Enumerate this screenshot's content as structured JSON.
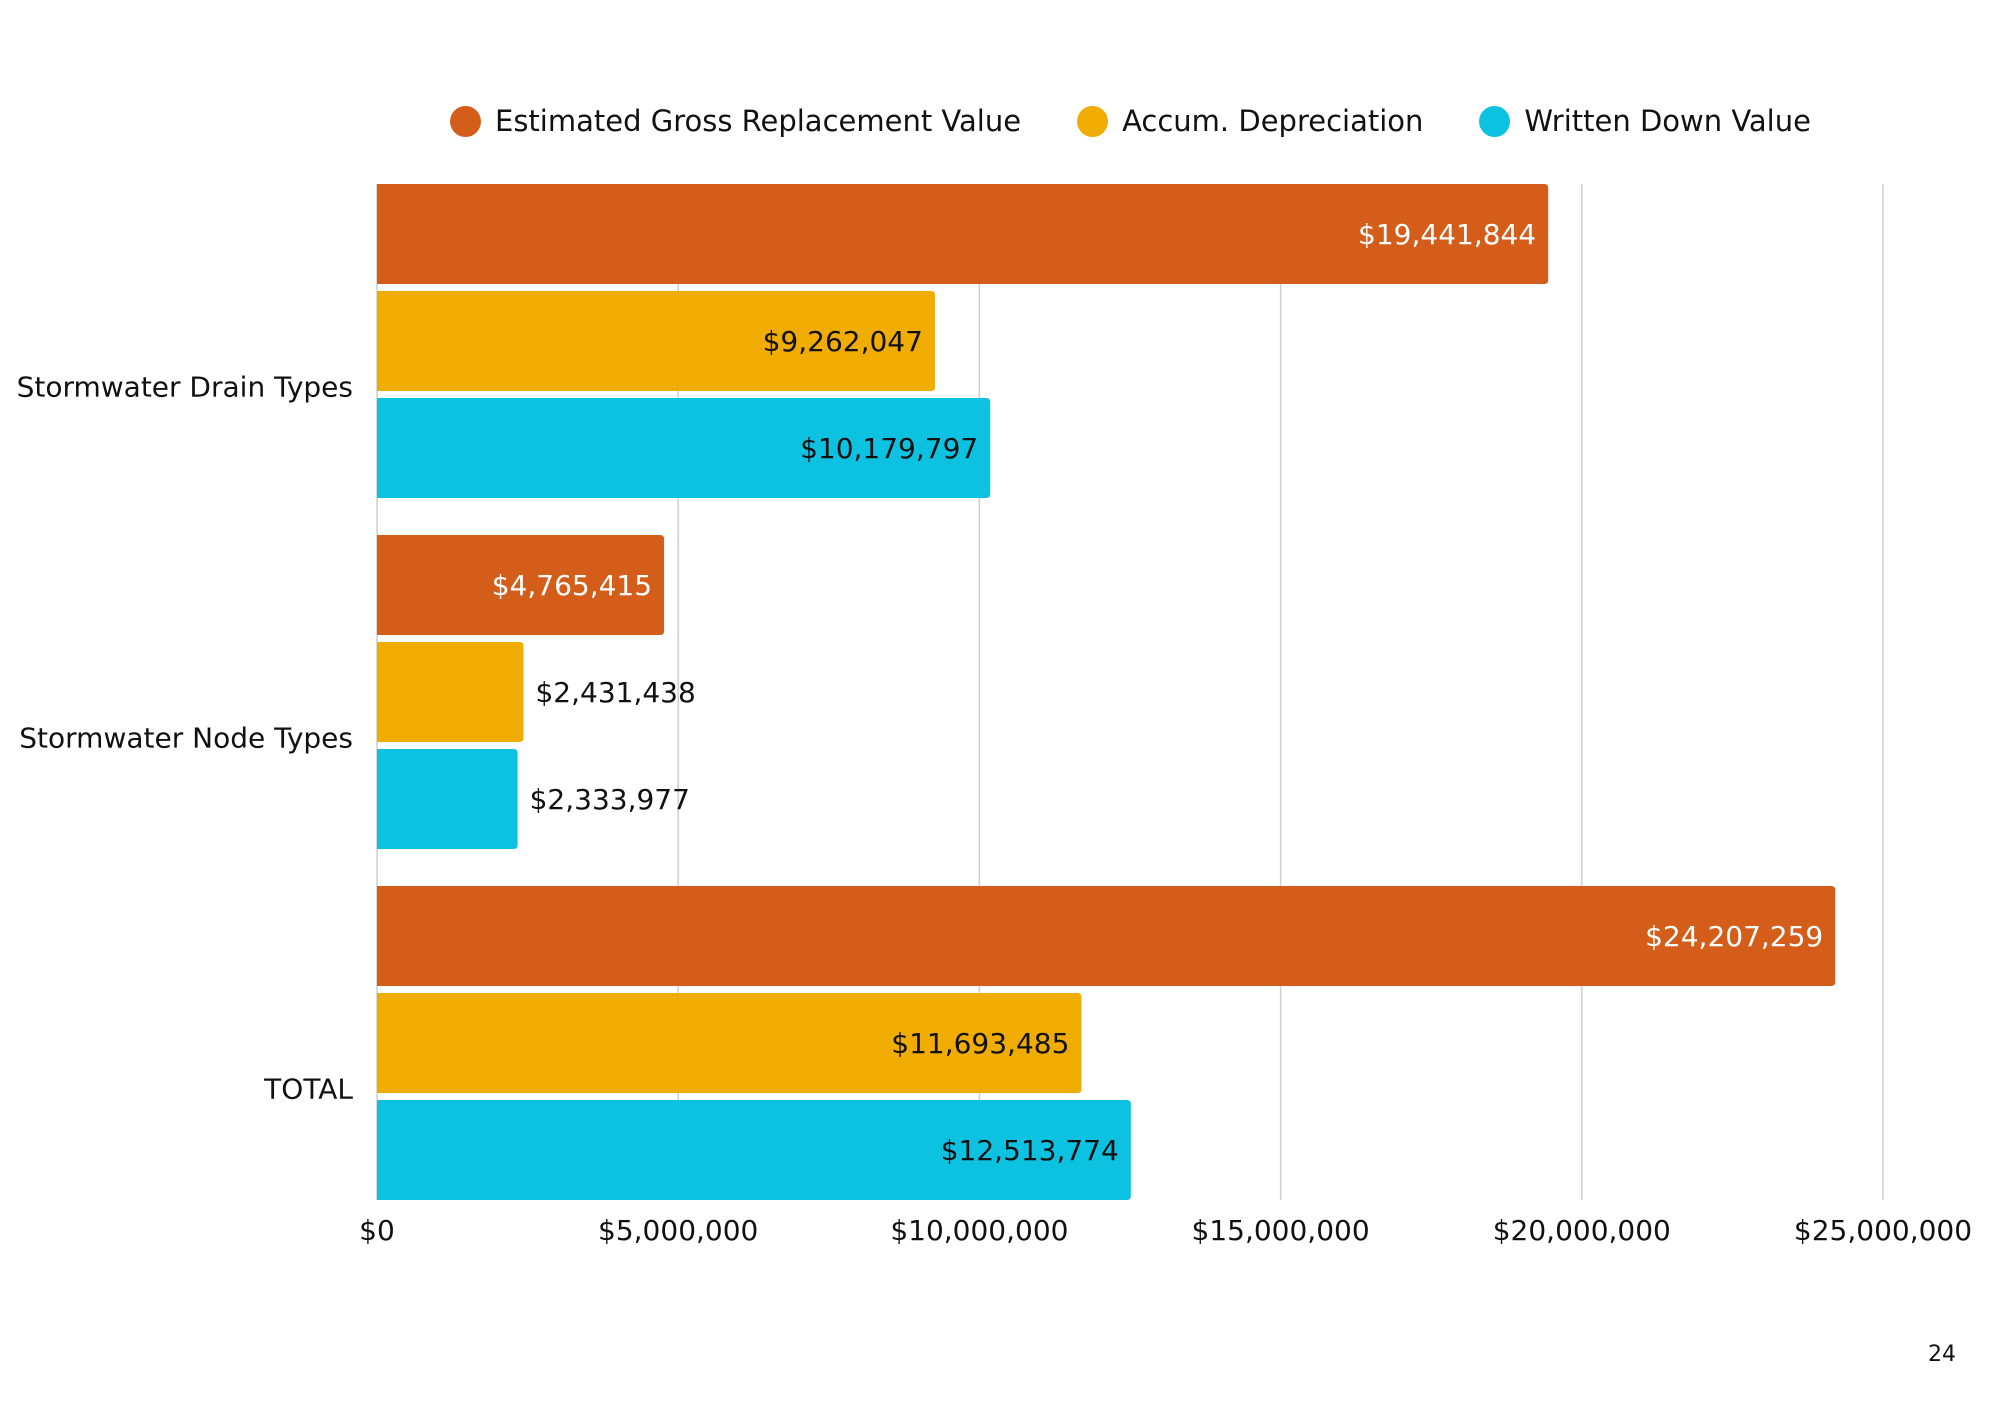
{
  "page_number": "24",
  "chart_data": {
    "type": "bar",
    "orientation": "horizontal",
    "title": "",
    "xlabel": "",
    "ylabel": "",
    "categories": [
      "Stormwater Drain Types",
      "Stormwater Node Types",
      "TOTAL"
    ],
    "series": [
      {
        "name": "Estimated Gross Replacement Value",
        "color": "#D45D1A",
        "label_color": "#FFFFFF",
        "values": [
          19441844,
          4765415,
          24207259
        ],
        "labels": [
          "$19,441,844",
          "$4,765,415",
          "$24,207,259"
        ]
      },
      {
        "name": "Accum. Depreciation",
        "color": "#F0AC00",
        "label_color": "#111111",
        "values": [
          9262047,
          2431438,
          11693485
        ],
        "labels": [
          "$9,262,047",
          "$2,431,438",
          "$11,693,485"
        ]
      },
      {
        "name": "Written Down Value",
        "color": "#0DC2E0",
        "label_color": "#111111",
        "values": [
          10179797,
          2333977,
          12513774
        ],
        "labels": [
          "$10,179,797",
          "$2,333,977",
          "$12,513,774"
        ]
      }
    ],
    "xlim": [
      0,
      25000000
    ],
    "xticks": [
      0,
      5000000,
      10000000,
      15000000,
      20000000,
      25000000
    ],
    "xtick_labels": [
      "$0",
      "$5,000,000",
      "$10,000,000",
      "$15,000,000",
      "$20,000,000",
      "$25,000,000"
    ],
    "grid": "vertical",
    "legend_position": "top"
  }
}
